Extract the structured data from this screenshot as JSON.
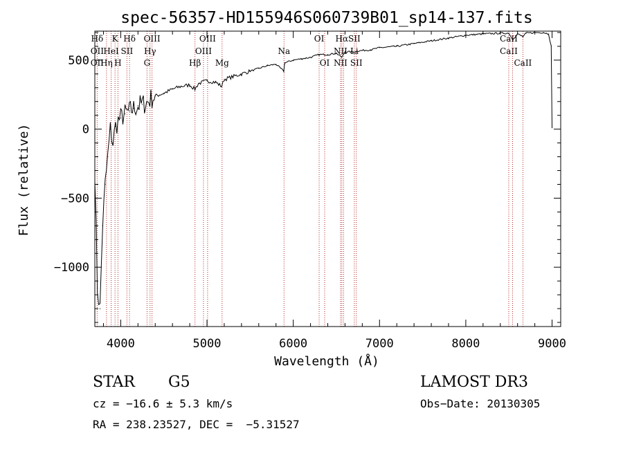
{
  "chart_data": {
    "type": "line",
    "title": "spec-56357-HD155946S060739B01_sp14-137.fits",
    "xlabel": "Wavelength (Å)",
    "ylabel": "Flux (relative)",
    "xlim": [
      3700,
      9100
    ],
    "ylim": [
      -1430,
      710
    ],
    "xticks": [
      4000,
      5000,
      6000,
      7000,
      8000,
      9000
    ],
    "yticks": [
      -1000,
      -500,
      0,
      500
    ],
    "series": [
      {
        "name": "flux",
        "x": [
          3700,
          3730,
          3760,
          3790,
          3820,
          3850,
          3880,
          3910,
          3940,
          3970,
          4000,
          4050,
          4100,
          4150,
          4200,
          4250,
          4300,
          4350,
          4400,
          4500,
          4600,
          4700,
          4800,
          4860,
          4900,
          5000,
          5100,
          5170,
          5200,
          5300,
          5400,
          5500,
          5600,
          5700,
          5800,
          5890,
          5900,
          6000,
          6100,
          6200,
          6300,
          6400,
          6500,
          6563,
          6600,
          6700,
          6800,
          6900,
          7000,
          7200,
          7400,
          7600,
          7800,
          8000,
          8200,
          8400,
          8500,
          8542,
          8600,
          8662,
          8700,
          8800,
          8900,
          8960,
          8990,
          9000
        ],
        "y": [
          -300,
          -1150,
          -1300,
          -700,
          -400,
          -200,
          0,
          -100,
          20,
          60,
          80,
          110,
          130,
          150,
          170,
          180,
          190,
          220,
          240,
          260,
          290,
          310,
          320,
          290,
          330,
          350,
          340,
          310,
          360,
          380,
          400,
          420,
          440,
          460,
          470,
          420,
          480,
          500,
          510,
          520,
          540,
          540,
          550,
          520,
          560,
          560,
          570,
          575,
          590,
          600,
          620,
          640,
          660,
          680,
          690,
          695,
          695,
          650,
          690,
          670,
          695,
          700,
          700,
          690,
          600,
          10
        ]
      }
    ],
    "line_markers": [
      {
        "top": "Hδ",
        "mid": "OII",
        "bottom": "OII",
        "wavelength": 3727
      },
      {
        "top": "",
        "mid": "",
        "bottom": "Hη",
        "wavelength": 3835
      },
      {
        "top": "",
        "mid": "HeI",
        "bottom": "",
        "wavelength": 3889
      },
      {
        "top": "K",
        "mid": "",
        "bottom": "",
        "wavelength": 3934
      },
      {
        "top": "",
        "mid": "",
        "bottom": "H",
        "wavelength": 3968
      },
      {
        "top": "",
        "mid": "SII",
        "bottom": "",
        "wavelength": 4072
      },
      {
        "top": "Hδ",
        "mid": "",
        "bottom": "",
        "wavelength": 4102
      },
      {
        "top": "",
        "mid": "",
        "bottom": "G",
        "wavelength": 4305
      },
      {
        "top": "",
        "mid": "Hγ",
        "bottom": "",
        "wavelength": 4340
      },
      {
        "top": "OIII",
        "mid": "",
        "bottom": "",
        "wavelength": 4363
      },
      {
        "top": "",
        "mid": "",
        "bottom": "Hβ",
        "wavelength": 4861
      },
      {
        "top": "",
        "mid": "OIII",
        "bottom": "",
        "wavelength": 4959
      },
      {
        "top": "OIII",
        "mid": "",
        "bottom": "",
        "wavelength": 5007
      },
      {
        "top": "",
        "mid": "",
        "bottom": "Mg",
        "wavelength": 5175
      },
      {
        "top": "",
        "mid": "Na",
        "bottom": "",
        "wavelength": 5893
      },
      {
        "top": "OI",
        "mid": "",
        "bottom": "",
        "wavelength": 6300
      },
      {
        "top": "",
        "mid": "",
        "bottom": "OI",
        "wavelength": 6364
      },
      {
        "top": "",
        "mid": "NII",
        "bottom": "NII",
        "wavelength": 6548
      },
      {
        "top": "Hα",
        "mid": "",
        "bottom": "",
        "wavelength": 6563
      },
      {
        "top": "",
        "mid": "",
        "bottom": "",
        "wavelength": 6583
      },
      {
        "top": "SII",
        "mid": "Li",
        "bottom": "",
        "wavelength": 6708
      },
      {
        "top": "",
        "mid": "",
        "bottom": "SII",
        "wavelength": 6731
      },
      {
        "top": "CaII",
        "mid": "CaII",
        "bottom": "",
        "wavelength": 8498
      },
      {
        "top": "",
        "mid": "",
        "bottom": "",
        "wavelength": 8542
      },
      {
        "top": "",
        "mid": "",
        "bottom": "CaII",
        "wavelength": 8662
      }
    ]
  },
  "info": {
    "object_class": "STAR",
    "subclass": "G5",
    "survey": "LAMOST DR3",
    "cz": "cz = −16.6 ± 5.3 km/s",
    "obs_date": "Obs−Date: 20130305",
    "coords": "RA = 238.23527, DEC =  −5.31527"
  },
  "colors": {
    "axis": "#000000",
    "line": "#000000",
    "marker": "#b22222"
  }
}
